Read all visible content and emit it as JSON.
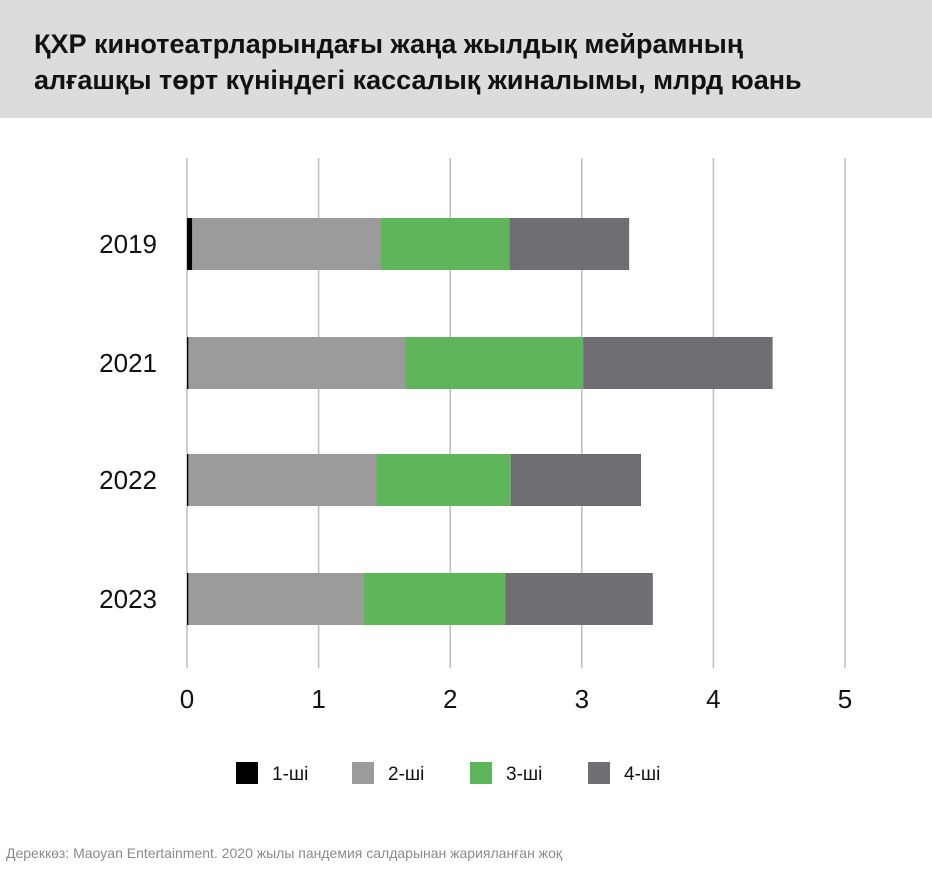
{
  "title_line1": "ҚХР кинотеатрларындағы жаңа жылдық мейрамның",
  "title_line2": "алғашқы төрт күніндегі кассалық жиналымы, млрд юань",
  "source": "Дереккөз: Maoyan Entertainment.  2020 жылы пандемия салдарынан жарияланған жоқ",
  "chart_data": {
    "type": "bar",
    "orientation": "horizontal",
    "stacked": true,
    "categories": [
      "2019",
      "2021",
      "2022",
      "2023"
    ],
    "series": [
      {
        "name": "1-ші",
        "color": "#000000",
        "values": [
          0.04,
          0.01,
          0.01,
          0.01
        ]
      },
      {
        "name": "2-ші",
        "color": "#9b9b9b",
        "values": [
          1.43,
          1.65,
          1.43,
          1.33
        ]
      },
      {
        "name": "3-ші",
        "color": "#5eb55a",
        "values": [
          0.98,
          1.35,
          1.02,
          1.08
        ]
      },
      {
        "name": "4-ші",
        "color": "#6f6f73",
        "values": [
          0.91,
          1.44,
          0.99,
          1.12
        ]
      }
    ],
    "xlim": [
      0,
      5
    ],
    "xticks": [
      "0",
      "1",
      "2",
      "3",
      "4",
      "5"
    ],
    "grid": true,
    "legend": "bottom"
  }
}
